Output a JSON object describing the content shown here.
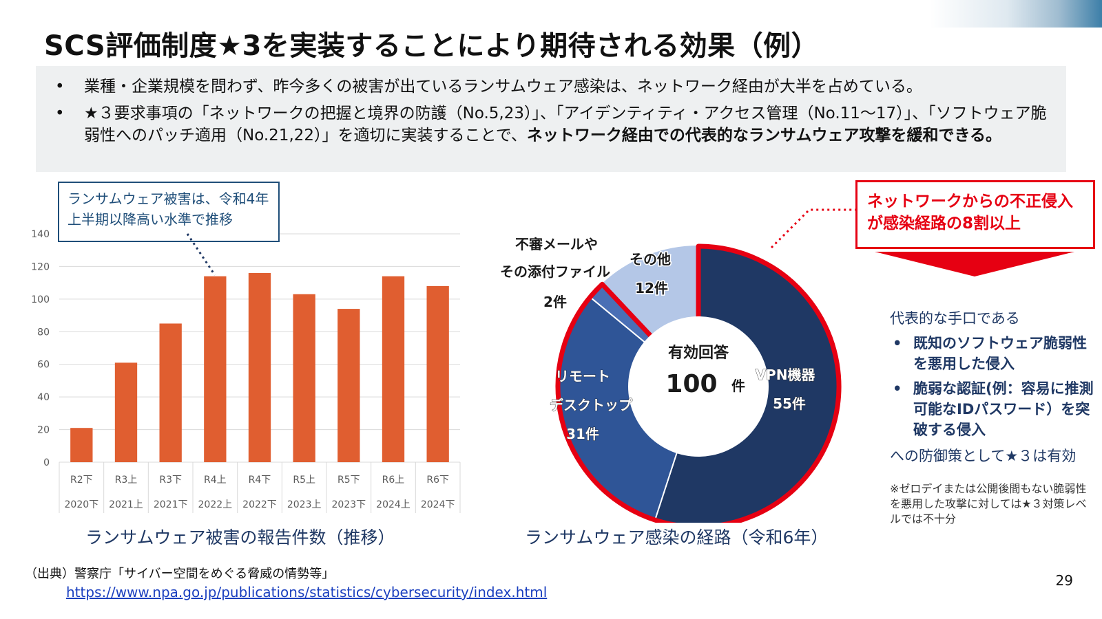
{
  "slide": {
    "title": "SCS評価制度★3を実装することにより期待される効果（例）",
    "page_number": "29"
  },
  "summary": {
    "bullet_mark": "•",
    "bullet1": "業種・企業規模を問わず、昨今多くの被害が出ているランサムウェア感染は、ネットワーク経由が大半を占めている。",
    "bullet2_plain": "★３要求事項の「ネットワークの把握と境界の防護（No.5,23）」、「アイデンティティ・アクセス管理（No.11～17）」、「ソフトウェア脆弱性へのパッチ適用（No.21,22）」を適切に実装することで、",
    "bullet2_bold": "ネットワーク経由での代表的なランサムウェア攻撃を緩和できる。"
  },
  "callout_left": {
    "line1": "ランサムウェア被害は、令和4年",
    "line2": "上半期以降高い水準で推移"
  },
  "callout_right": {
    "line1": "ネットワークからの不正侵入",
    "line2": "が感染経路の8割以上"
  },
  "right_panel": {
    "lead": "代表的な手口である",
    "bullet_mark": "•",
    "item1": "既知のソフトウェア脆弱性を悪用した侵入",
    "item2": "脆弱な認証(例：容易に推測可能なIDパスワード）を突破する侵入",
    "effect": "への防御策として★３は有効",
    "note": "※ゼロデイまたは公開後間もない脆弱性を悪用した攻撃に対しては★３対策レベルでは不十分"
  },
  "captions": {
    "bar_chart": "ランサムウェア被害の報告件数（推移）",
    "donut_chart": "ランサムウェア感染の経路（令和6年）"
  },
  "source": {
    "label": "（出典）警察庁「サイバー空間をめぐる脅威の情勢等」",
    "url": "https://www.npa.go.jp/publications/statistics/cybersecurity/index.html"
  },
  "colors": {
    "bar": "#e05e30",
    "callout_red": "#e60012",
    "navy": "#1f3864",
    "vpn": "#1f3864",
    "remote": "#2f5597",
    "mail": "#4a6fb5",
    "other": "#b4c7e7"
  },
  "chart_data": [
    {
      "type": "bar",
      "categories": [
        "R2下",
        "R3上",
        "R3下",
        "R4上",
        "R4下",
        "R5上",
        "R5下",
        "R6上",
        "R6下"
      ],
      "sub_categories": [
        "2020下",
        "2021上",
        "2021下",
        "2022上",
        "2022下",
        "2023上",
        "2023下",
        "2024上",
        "2024下"
      ],
      "values": [
        21,
        61,
        85,
        114,
        116,
        103,
        94,
        114,
        108
      ],
      "yticks": [
        0,
        20,
        40,
        60,
        80,
        100,
        120,
        140
      ],
      "ylim": [
        0,
        140
      ],
      "grid": true,
      "title": ""
    },
    {
      "type": "pie",
      "style": "donut",
      "center_label": "有効回答",
      "center_value": "100",
      "center_unit": "件",
      "slices": [
        {
          "label": "VPN機器",
          "value_label": "55件",
          "value": 55,
          "color": "#1f3864"
        },
        {
          "label": "リモートデスクトップ",
          "label_line1": "リモート",
          "label_line2": "デスクトップ",
          "value_label": "31件",
          "value": 31,
          "color": "#2f5597"
        },
        {
          "label": "不審メールやその添付ファイル",
          "label_line1": "不審メールや",
          "label_line2": "その添付ファイル",
          "value_label": "2件",
          "value": 2,
          "color": "#4a6fb5"
        },
        {
          "label": "その他",
          "value_label": "12件",
          "value": 12,
          "color": "#b4c7e7"
        }
      ]
    }
  ]
}
